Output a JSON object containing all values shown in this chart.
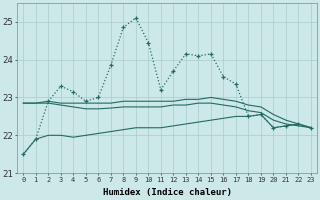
{
  "xlabel": "Humidex (Indice chaleur)",
  "x": [
    0,
    1,
    2,
    3,
    4,
    5,
    6,
    7,
    8,
    9,
    10,
    11,
    12,
    13,
    14,
    15,
    16,
    17,
    18,
    19,
    20,
    21,
    22,
    23
  ],
  "line1": [
    21.5,
    21.9,
    22.9,
    23.3,
    23.15,
    22.9,
    23.0,
    23.85,
    24.85,
    25.1,
    24.45,
    23.2,
    23.7,
    24.15,
    24.1,
    24.15,
    23.55,
    23.35,
    22.5,
    22.55,
    22.2,
    22.25,
    22.3,
    22.2
  ],
  "line2": [
    22.85,
    22.85,
    22.9,
    22.85,
    22.85,
    22.85,
    22.85,
    22.85,
    22.9,
    22.9,
    22.9,
    22.9,
    22.9,
    22.95,
    22.95,
    23.0,
    22.95,
    22.9,
    22.8,
    22.75,
    22.55,
    22.4,
    22.3,
    22.2
  ],
  "line3": [
    22.85,
    22.85,
    22.85,
    22.8,
    22.75,
    22.7,
    22.7,
    22.72,
    22.75,
    22.75,
    22.75,
    22.75,
    22.8,
    22.8,
    22.85,
    22.85,
    22.8,
    22.75,
    22.65,
    22.6,
    22.4,
    22.3,
    22.25,
    22.2
  ],
  "line4": [
    21.5,
    21.9,
    22.0,
    22.0,
    21.95,
    22.0,
    22.05,
    22.1,
    22.15,
    22.2,
    22.2,
    22.2,
    22.25,
    22.3,
    22.35,
    22.4,
    22.45,
    22.5,
    22.5,
    22.55,
    22.2,
    22.25,
    22.3,
    22.2
  ],
  "ylim": [
    21.0,
    25.5
  ],
  "yticks": [
    21,
    22,
    23,
    24,
    25
  ],
  "line_color": "#236b5e",
  "bg_color": "#cce8e8",
  "grid_color": "#aacccc"
}
